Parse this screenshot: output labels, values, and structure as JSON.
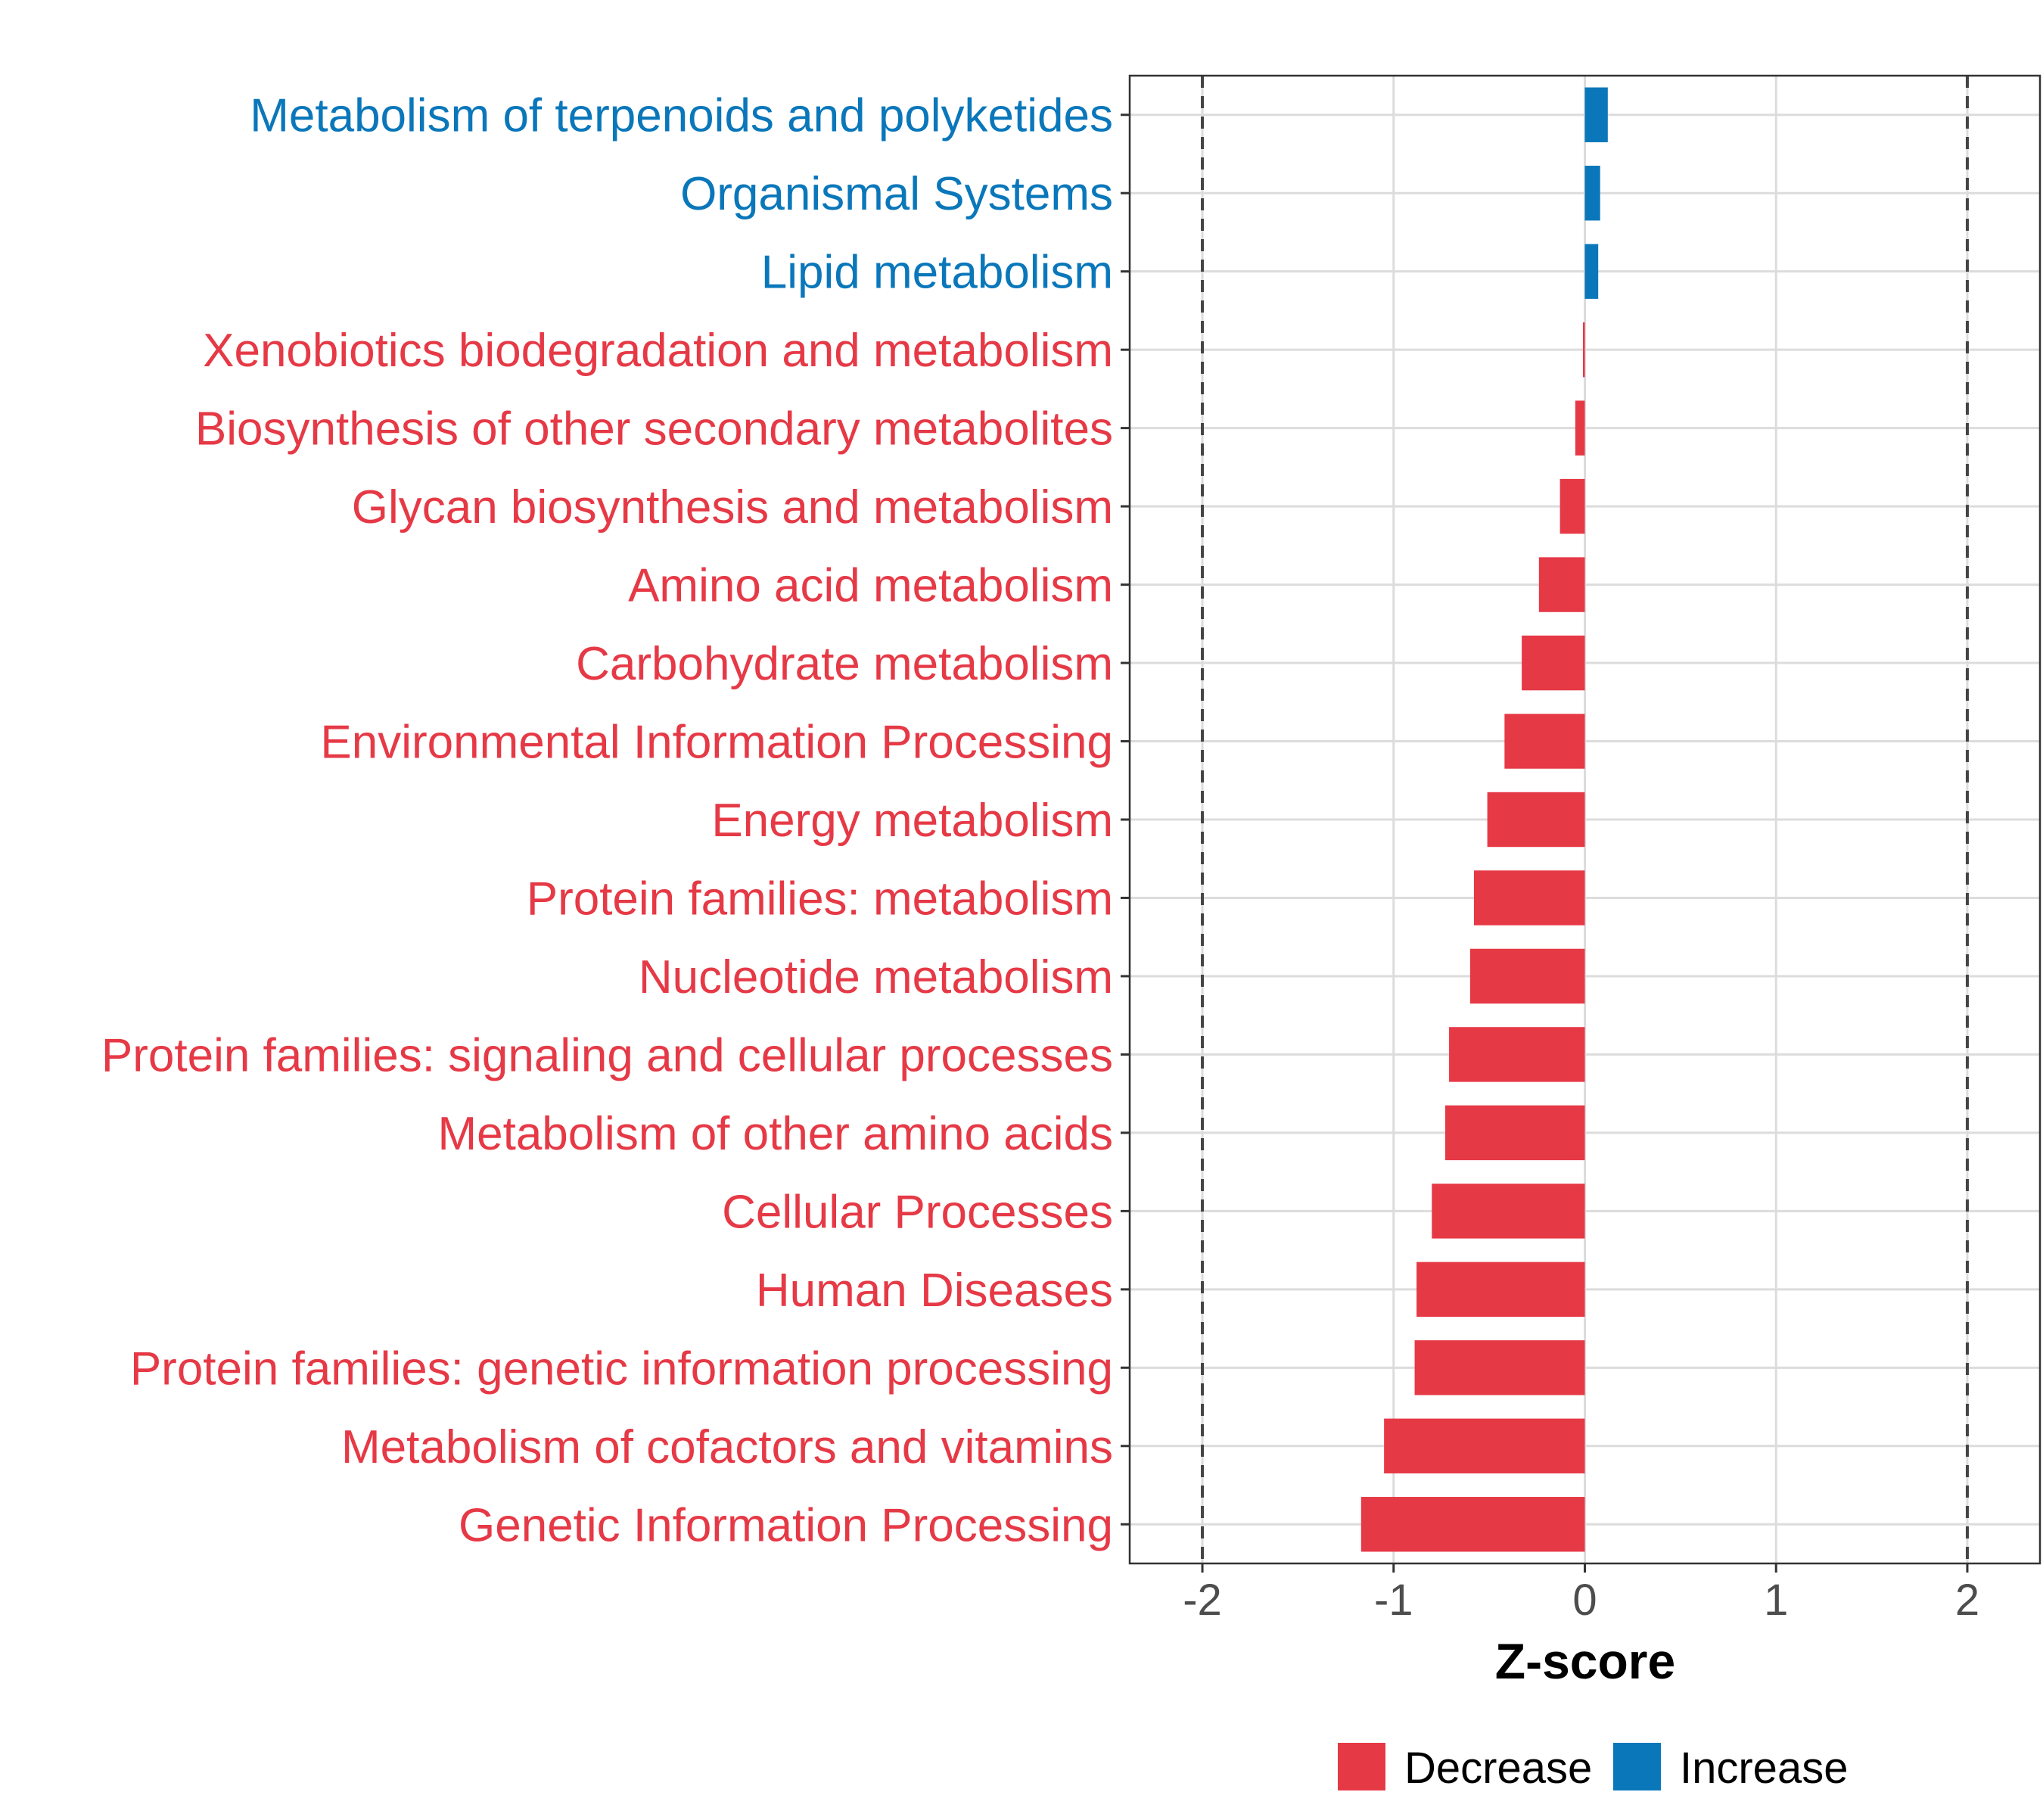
{
  "chart_data": {
    "type": "bar",
    "orientation": "horizontal",
    "title": "",
    "xlabel": "Z-score",
    "ylabel": "",
    "xlim": [
      -2.38,
      2.38
    ],
    "xticks": [
      -2,
      -1,
      0,
      1,
      2
    ],
    "xtick_labels": [
      "-2",
      "-1",
      "0",
      "1",
      "2"
    ],
    "reference_lines": [
      -2,
      2
    ],
    "grid": true,
    "colors": {
      "Decrease": "#E63946",
      "Increase": "#0A77BA"
    },
    "legend": {
      "placement": "bottom",
      "entries": [
        {
          "label": "Decrease",
          "color": "#E63946"
        },
        {
          "label": "Increase",
          "color": "#0A77BA"
        }
      ]
    },
    "categories": [
      "Metabolism of terpenoids and polyketides",
      "Organismal Systems",
      "Lipid metabolism",
      "Xenobiotics biodegradation and metabolism",
      "Biosynthesis of other secondary metabolites",
      "Glycan biosynthesis and metabolism",
      "Amino acid metabolism",
      "Carbohydrate metabolism",
      "Environmental Information Processing",
      "Energy metabolism",
      "Protein families: metabolism",
      "Nucleotide metabolism",
      "Protein families: signaling and cellular processes",
      "Metabolism of other amino acids",
      "Cellular Processes",
      "Human Diseases",
      "Protein families: genetic information processing",
      "Metabolism of cofactors and vitamins",
      "Genetic Information Processing"
    ],
    "values": [
      0.12,
      0.08,
      0.07,
      -0.01,
      -0.05,
      -0.13,
      -0.24,
      -0.33,
      -0.42,
      -0.51,
      -0.58,
      -0.6,
      -0.71,
      -0.73,
      -0.8,
      -0.88,
      -0.89,
      -1.05,
      -1.17
    ],
    "groups": [
      "Increase",
      "Increase",
      "Increase",
      "Decrease",
      "Decrease",
      "Decrease",
      "Decrease",
      "Decrease",
      "Decrease",
      "Decrease",
      "Decrease",
      "Decrease",
      "Decrease",
      "Decrease",
      "Decrease",
      "Decrease",
      "Decrease",
      "Decrease",
      "Decrease"
    ]
  }
}
